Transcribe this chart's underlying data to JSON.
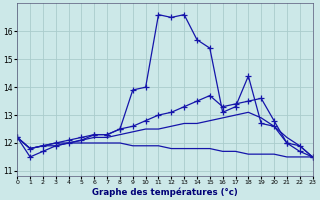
{
  "xlabel": "Graphe des températures (°c)",
  "bg_color": "#cce8e8",
  "line_color": "#1515aa",
  "grid_color": "#aacccc",
  "ylim": [
    10.8,
    17.0
  ],
  "xlim": [
    0,
    23
  ],
  "ytick_vals": [
    11,
    12,
    13,
    14,
    15,
    16
  ],
  "xtick_vals": [
    0,
    1,
    2,
    3,
    4,
    5,
    6,
    7,
    8,
    9,
    10,
    11,
    12,
    13,
    14,
    15,
    16,
    17,
    18,
    19,
    20,
    21,
    22,
    23
  ],
  "curve0_x": [
    0,
    1,
    2,
    3,
    4,
    5,
    6,
    7,
    8,
    9,
    10,
    11,
    12,
    13,
    14,
    15,
    16,
    17,
    18,
    19,
    20,
    21,
    22,
    23
  ],
  "curve0_y": [
    12.2,
    11.5,
    11.7,
    11.9,
    12.0,
    12.1,
    12.3,
    12.3,
    12.5,
    13.9,
    14.0,
    16.6,
    16.5,
    16.6,
    15.7,
    15.4,
    13.1,
    13.3,
    14.4,
    12.7,
    12.6,
    12.0,
    11.7,
    11.5
  ],
  "curve1_x": [
    0,
    1,
    2,
    3,
    4,
    5,
    6,
    7,
    8,
    9,
    10,
    11,
    12,
    13,
    14,
    15,
    16,
    17,
    18,
    19,
    20,
    21,
    22,
    23
  ],
  "curve1_y": [
    12.2,
    11.8,
    11.9,
    12.0,
    12.1,
    12.2,
    12.3,
    12.3,
    12.5,
    12.6,
    12.8,
    13.0,
    13.1,
    13.3,
    13.5,
    13.7,
    13.3,
    13.4,
    13.5,
    13.6,
    12.8,
    12.0,
    11.9,
    11.5
  ],
  "curve2_x": [
    0,
    1,
    2,
    3,
    4,
    5,
    6,
    7,
    8,
    9,
    10,
    11,
    12,
    13,
    14,
    15,
    16,
    17,
    18,
    19,
    20,
    21,
    22,
    23
  ],
  "curve2_y": [
    12.2,
    11.8,
    11.9,
    12.0,
    12.0,
    12.1,
    12.2,
    12.2,
    12.3,
    12.4,
    12.5,
    12.5,
    12.6,
    12.7,
    12.7,
    12.8,
    12.9,
    13.0,
    13.1,
    12.9,
    12.6,
    12.2,
    11.9,
    11.5
  ],
  "curve3_x": [
    0,
    1,
    2,
    3,
    4,
    5,
    6,
    7,
    8,
    9,
    10,
    11,
    12,
    13,
    14,
    15,
    16,
    17,
    18,
    19,
    20,
    21,
    22,
    23
  ],
  "curve3_y": [
    12.2,
    11.8,
    11.9,
    11.9,
    12.0,
    12.0,
    12.0,
    12.0,
    12.0,
    11.9,
    11.9,
    11.9,
    11.8,
    11.8,
    11.8,
    11.8,
    11.7,
    11.7,
    11.6,
    11.6,
    11.6,
    11.5,
    11.5,
    11.5
  ],
  "marker": "+",
  "markersize": 4,
  "lw": 0.9
}
